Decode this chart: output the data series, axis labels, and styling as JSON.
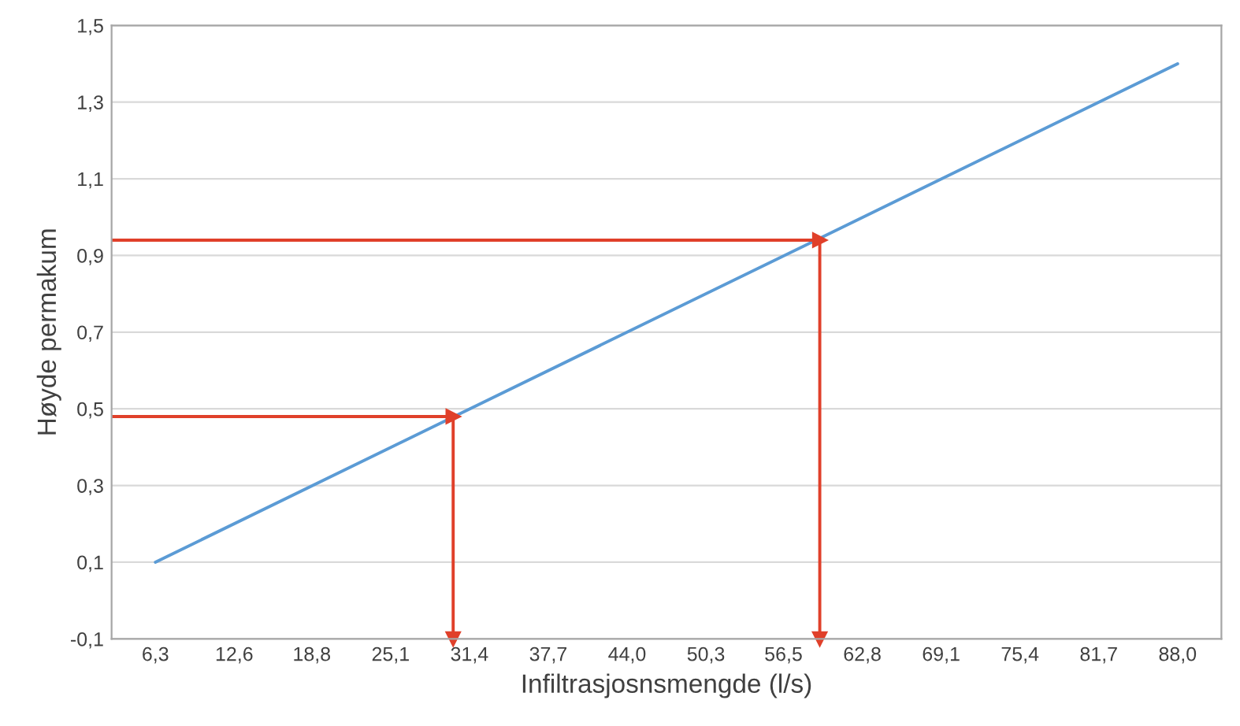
{
  "chart_data": {
    "type": "line",
    "xlabel": "Infiltrasjosnsmengde (l/s)",
    "ylabel": "Høyde permakum",
    "xlim": [
      2.8,
      91.5
    ],
    "ylim": [
      -0.1,
      1.5
    ],
    "xticks": [
      {
        "value": 6.3,
        "label": "6,3"
      },
      {
        "value": 12.6,
        "label": "12,6"
      },
      {
        "value": 18.8,
        "label": "18,8"
      },
      {
        "value": 25.1,
        "label": "25,1"
      },
      {
        "value": 31.4,
        "label": "31,4"
      },
      {
        "value": 37.7,
        "label": "37,7"
      },
      {
        "value": 44.0,
        "label": "44,0"
      },
      {
        "value": 50.3,
        "label": "50,3"
      },
      {
        "value": 56.5,
        "label": "56,5"
      },
      {
        "value": 62.8,
        "label": "62,8"
      },
      {
        "value": 69.1,
        "label": "69,1"
      },
      {
        "value": 75.4,
        "label": "75,4"
      },
      {
        "value": 81.7,
        "label": "81,7"
      },
      {
        "value": 88.0,
        "label": "88,0"
      }
    ],
    "yticks": [
      {
        "value": -0.1,
        "label": "-0,1"
      },
      {
        "value": 0.1,
        "label": "0,1"
      },
      {
        "value": 0.3,
        "label": "0,3"
      },
      {
        "value": 0.5,
        "label": "0,5"
      },
      {
        "value": 0.7,
        "label": "0,7"
      },
      {
        "value": 0.9,
        "label": "0,9"
      },
      {
        "value": 1.1,
        "label": "1,1"
      },
      {
        "value": 1.3,
        "label": "1,3"
      },
      {
        "value": 1.5,
        "label": "1,5"
      }
    ],
    "grid": "y",
    "series": [
      {
        "color": "#5b9bd5",
        "x": [
          6.3,
          88.0
        ],
        "values": [
          0.1,
          1.4
        ]
      },
      {
        "marker": "triangle",
        "color": "#e0402a",
        "x": [
          2.8,
          30.1,
          30.1
        ],
        "values": [
          0.48,
          0.48,
          -0.1
        ]
      },
      {
        "marker": "triangle",
        "color": "#e0402a",
        "x": [
          2.8,
          59.4,
          59.4
        ],
        "values": [
          0.94,
          0.94,
          -0.1
        ]
      }
    ]
  }
}
